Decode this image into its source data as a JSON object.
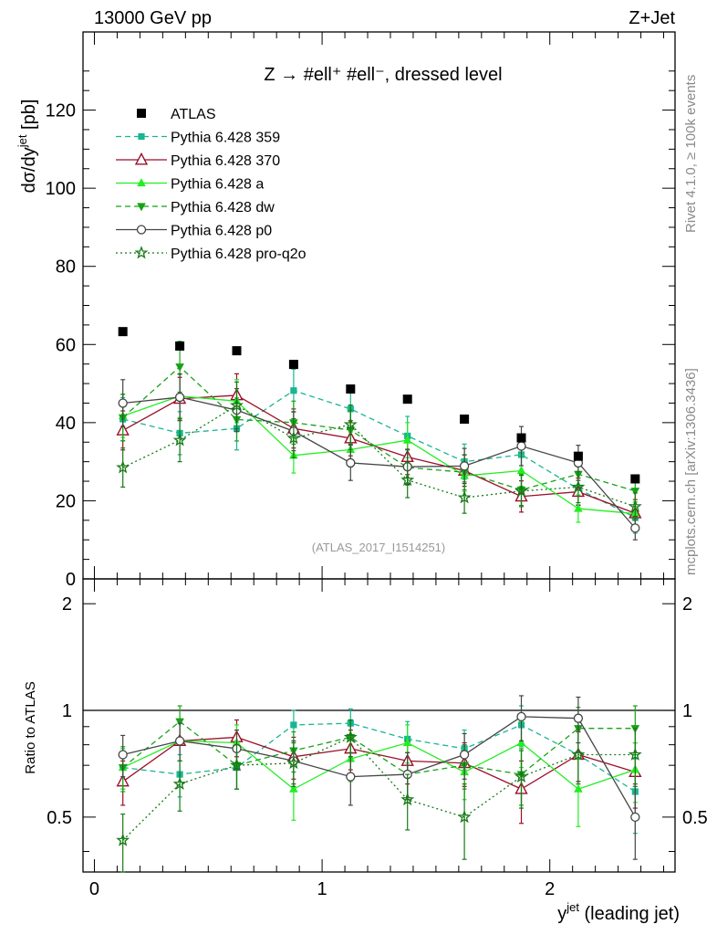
{
  "header": {
    "energy_label": "13000 GeV pp",
    "process_label": "Z+Jet",
    "plot_title": "Z → #ell⁺ #ell⁻, dressed level",
    "rivet_label": "Rivet 4.1.0, ≥ 100k events",
    "source_label": "mcplots.cern.ch [arXiv:1306.3436]",
    "analysis_label": "(ATLAS_2017_I1514251)"
  },
  "axes": {
    "main_ylabel": "dσ/dy",
    "main_ylabel_sup": "jet",
    "main_ylabel_unit": " [pb]",
    "ratio_ylabel": "Ratio to ATLAS",
    "xlabel": "y",
    "xlabel_sup": "jet",
    "xlabel_rest": " (leading jet)",
    "main_yticks": [
      "0",
      "20",
      "40",
      "60",
      "80",
      "100",
      "120"
    ],
    "ratio_yticks": [
      "0.5",
      "1",
      "2"
    ],
    "xticks": [
      "0",
      "1",
      "2"
    ]
  },
  "legend": [
    {
      "label": "ATLAS"
    },
    {
      "label": "Pythia 6.428 359"
    },
    {
      "label": "Pythia 6.428 370"
    },
    {
      "label": "Pythia 6.428 a"
    },
    {
      "label": "Pythia 6.428 dw"
    },
    {
      "label": "Pythia 6.428 p0"
    },
    {
      "label": "Pythia 6.428 pro-q2o"
    }
  ],
  "colors": {
    "atlas": "#000000",
    "s359": "#19b592",
    "s370": "#9b0f2a",
    "a": "#22ee22",
    "dw": "#16a216",
    "p0": "#454545",
    "proq2o": "#167a16"
  },
  "chart_data": {
    "type": "scatter",
    "x": [
      0.125,
      0.375,
      0.625,
      0.875,
      1.125,
      1.375,
      1.625,
      1.875,
      2.125,
      2.375
    ],
    "xlim": [
      -0.05,
      2.55
    ],
    "main_ylim": [
      0,
      140
    ],
    "ratio_ylim": [
      0.35,
      2.35
    ],
    "ratio_scale": "log",
    "series": [
      {
        "name": "ATLAS",
        "key": "atlas",
        "marker": "square",
        "line": "none",
        "values": [
          63.3,
          59.6,
          58.4,
          54.9,
          48.6,
          46.0,
          40.9,
          36.1,
          31.4,
          25.6
        ],
        "errors": [
          0.6,
          0.6,
          0.6,
          0.6,
          0.5,
          0.5,
          0.5,
          0.5,
          0.5,
          0.5
        ],
        "ratio": [
          1,
          1,
          1,
          1,
          1,
          1,
          1,
          1,
          1,
          1
        ],
        "ratio_err": [
          0,
          0,
          0,
          0,
          0,
          0,
          0,
          0,
          0,
          0
        ]
      },
      {
        "name": "Pythia 6.428 359",
        "key": "s359",
        "marker": "square-small",
        "line": "dashed",
        "values": [
          40.9,
          37.3,
          38.5,
          48.2,
          43.5,
          36.6,
          30.0,
          31.8,
          23.0,
          15.7
        ],
        "errors": [
          5.5,
          5.5,
          5.5,
          5.5,
          5.0,
          5.0,
          4.5,
          4.5,
          4.0,
          4.0
        ],
        "ratio": [
          0.69,
          0.66,
          0.69,
          0.91,
          0.92,
          0.83,
          0.78,
          0.91,
          0.75,
          0.59
        ],
        "ratio_err": [
          0.09,
          0.09,
          0.09,
          0.09,
          0.09,
          0.1,
          0.1,
          0.12,
          0.12,
          0.14
        ]
      },
      {
        "name": "Pythia 6.428 370",
        "key": "s370",
        "marker": "triangle-open",
        "line": "solid",
        "values": [
          38.0,
          46.1,
          47.0,
          38.5,
          36.0,
          31.2,
          27.7,
          21.1,
          22.3,
          16.8
        ],
        "errors": [
          5.0,
          5.5,
          5.5,
          5.0,
          4.5,
          4.5,
          4.0,
          4.0,
          3.5,
          3.5
        ],
        "ratio": [
          0.63,
          0.82,
          0.84,
          0.74,
          0.78,
          0.72,
          0.71,
          0.6,
          0.75,
          0.67
        ],
        "ratio_err": [
          0.09,
          0.1,
          0.1,
          0.1,
          0.1,
          0.1,
          0.1,
          0.12,
          0.12,
          0.14
        ]
      },
      {
        "name": "Pythia 6.428 a",
        "key": "a",
        "marker": "triangle-up",
        "line": "solid",
        "values": [
          41.7,
          46.8,
          45.5,
          31.6,
          33.1,
          35.5,
          26.4,
          27.7,
          18.0,
          16.7
        ],
        "errors": [
          5.5,
          5.5,
          5.5,
          4.5,
          4.5,
          4.5,
          4.0,
          4.0,
          3.5,
          3.0
        ],
        "ratio": [
          0.69,
          0.82,
          0.81,
          0.6,
          0.73,
          0.81,
          0.67,
          0.81,
          0.6,
          0.68
        ],
        "ratio_err": [
          0.09,
          0.1,
          0.1,
          0.11,
          0.1,
          0.1,
          0.11,
          0.12,
          0.13,
          0.13
        ]
      },
      {
        "name": "Pythia 6.428 dw",
        "key": "dw",
        "marker": "triangle-down",
        "line": "dashed",
        "values": [
          41.3,
          54.3,
          40.8,
          40.0,
          38.1,
          28.5,
          27.3,
          22.8,
          26.8,
          22.5
        ],
        "errors": [
          6.0,
          6.5,
          5.5,
          5.5,
          5.0,
          4.5,
          4.5,
          4.0,
          4.0,
          4.0
        ],
        "ratio": [
          0.69,
          0.93,
          0.7,
          0.77,
          0.84,
          0.66,
          0.7,
          0.66,
          0.89,
          0.89
        ],
        "ratio_err": [
          0.1,
          0.1,
          0.1,
          0.1,
          0.1,
          0.1,
          0.1,
          0.12,
          0.13,
          0.14
        ]
      },
      {
        "name": "Pythia 6.428 p0",
        "key": "p0",
        "marker": "circle-open",
        "line": "solid",
        "values": [
          45.0,
          46.5,
          43.2,
          37.8,
          29.7,
          28.7,
          28.9,
          34.0,
          29.7,
          13.0
        ],
        "errors": [
          6.0,
          6.0,
          5.5,
          5.0,
          4.5,
          4.5,
          4.5,
          5.0,
          4.5,
          3.0
        ],
        "ratio": [
          0.75,
          0.82,
          0.78,
          0.72,
          0.65,
          0.66,
          0.75,
          0.96,
          0.95,
          0.5
        ],
        "ratio_err": [
          0.1,
          0.1,
          0.1,
          0.1,
          0.11,
          0.1,
          0.11,
          0.14,
          0.14,
          0.12
        ]
      },
      {
        "name": "Pythia 6.428 pro-q2o",
        "key": "proq2o",
        "marker": "star",
        "line": "dotted",
        "values": [
          28.5,
          35.5,
          44.4,
          36.0,
          39.5,
          25.3,
          20.8,
          22.5,
          23.5,
          18.5
        ],
        "errors": [
          5.0,
          5.5,
          6.0,
          5.0,
          5.0,
          4.5,
          4.0,
          4.0,
          4.0,
          3.5
        ],
        "ratio": [
          0.43,
          0.62,
          0.7,
          0.71,
          0.84,
          0.56,
          0.5,
          0.65,
          0.75,
          0.75
        ],
        "ratio_err": [
          0.08,
          0.1,
          0.1,
          0.1,
          0.1,
          0.1,
          0.12,
          0.12,
          0.13,
          0.14
        ]
      }
    ]
  }
}
